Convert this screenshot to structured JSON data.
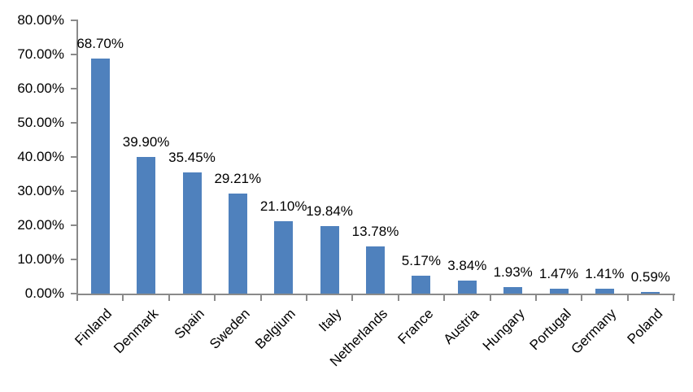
{
  "chart_data": {
    "type": "bar",
    "categories": [
      "Finland",
      "Denmark",
      "Spain",
      "Sweden",
      "Belgium",
      "Italy",
      "Netherlands",
      "France",
      "Austria",
      "Hungary",
      "Portugal",
      "Germany",
      "Poland"
    ],
    "values": [
      68.7,
      39.9,
      35.45,
      29.21,
      21.1,
      19.84,
      13.78,
      5.17,
      3.84,
      1.93,
      1.47,
      1.41,
      0.59
    ],
    "data_labels": [
      "68.70%",
      "39.90%",
      "35.45%",
      "29.21%",
      "21.10%",
      "19.84%",
      "13.78%",
      "5.17%",
      "3.84%",
      "1.93%",
      "1.47%",
      "1.41%",
      "0.59%"
    ],
    "ytick_labels": [
      "0.00%",
      "10.00%",
      "20.00%",
      "30.00%",
      "40.00%",
      "50.00%",
      "60.00%",
      "70.00%",
      "80.00%"
    ],
    "ylim": [
      0,
      80
    ],
    "ytick_step": 10,
    "grid": false,
    "legend": false,
    "bar_color": "#4F81BD",
    "axis_color": "#8A8A8A",
    "text_color": "#000000",
    "background_color": "#FFFFFF",
    "category_label_rotation_deg": -45
  }
}
